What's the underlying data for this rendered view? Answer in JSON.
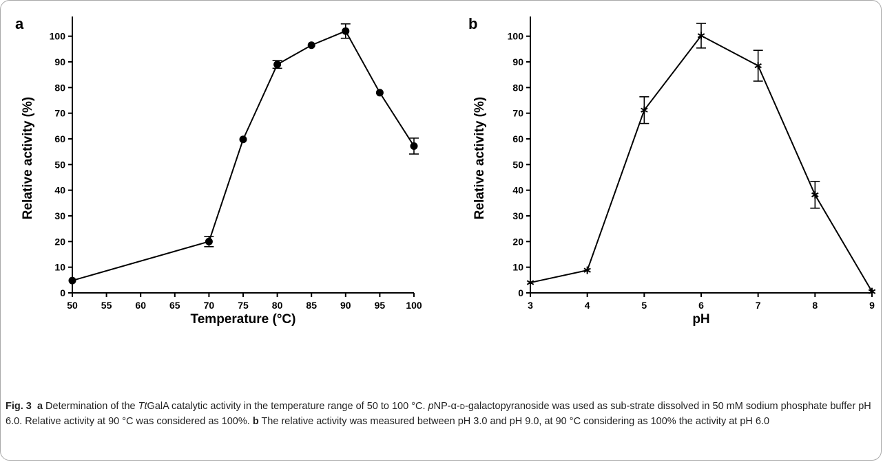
{
  "chart_data": [
    {
      "panel": "a",
      "type": "line",
      "marker": "circle",
      "xlabel": "Temperature (°C)",
      "ylabel": "Relative activity (%)",
      "xlim": [
        50,
        100
      ],
      "ylim": [
        0,
        105
      ],
      "xticks": [
        50,
        55,
        60,
        65,
        70,
        75,
        80,
        85,
        90,
        95,
        100
      ],
      "yticks": [
        0,
        10,
        20,
        30,
        40,
        50,
        60,
        70,
        80,
        90,
        100
      ],
      "x": [
        50,
        70,
        75,
        80,
        85,
        90,
        95,
        100
      ],
      "y": [
        4.8,
        20,
        59.8,
        89,
        96.5,
        102,
        78,
        57.2
      ],
      "error": [
        0,
        2,
        0,
        1.5,
        0,
        2.8,
        0,
        3.1
      ]
    },
    {
      "panel": "b",
      "type": "line",
      "marker": "asterisk",
      "xlabel": "pH",
      "ylabel": "Relative activity (%)",
      "xlim": [
        3,
        9
      ],
      "ylim": [
        0,
        105
      ],
      "xticks": [
        3,
        4,
        5,
        6,
        7,
        8,
        9
      ],
      "yticks": [
        0,
        10,
        20,
        30,
        40,
        50,
        60,
        70,
        80,
        90,
        100
      ],
      "x": [
        3,
        4,
        5,
        6,
        7,
        8,
        9
      ],
      "y": [
        4,
        8.8,
        71.2,
        100.2,
        88.5,
        38.2,
        0.5
      ],
      "error": [
        0,
        0,
        5.2,
        4.8,
        6,
        5.2,
        0
      ]
    }
  ],
  "caption": {
    "fig_label": "Fig. 3",
    "a_label": "a",
    "a_text_1": " Determination of the ",
    "a_italic": "Tt",
    "a_text_2": "GalA catalytic activity in the temperature range of 50 to 100 °C. ",
    "a_italic_p": "p",
    "a_text_3": "NP-α-",
    "a_small_caps": "d",
    "a_text_4": "-galactopyranoside was used as sub-strate dissolved in 50 mM sodium phosphate buffer pH 6.0. Relative activity at 90 °C was considered as 100%. ",
    "b_label": "b",
    "b_text": " The relative activity was measured between pH 3.0 and pH 9.0, at 90 °C considering as 100% the activity at pH 6.0"
  }
}
